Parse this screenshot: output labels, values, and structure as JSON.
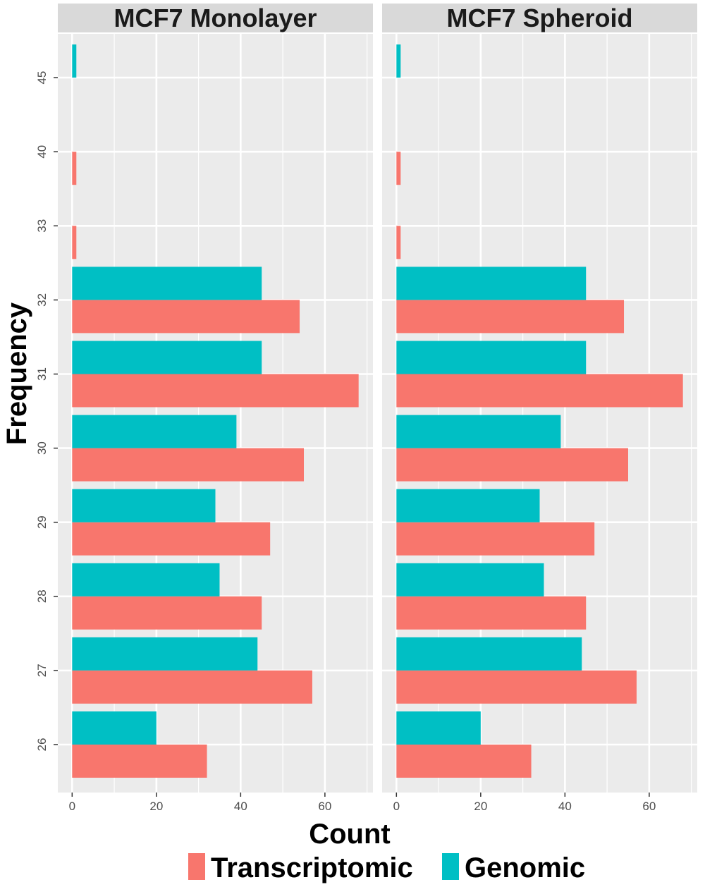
{
  "chart_data": {
    "type": "bar",
    "orientation": "horizontal",
    "facets": [
      "MCF7 Monolayer",
      "MCF7 Spheroid"
    ],
    "categories": [
      "26",
      "27",
      "28",
      "29",
      "30",
      "31",
      "32",
      "33",
      "40",
      "45"
    ],
    "series": [
      {
        "name": "Transcriptomic",
        "color": "#F8766D",
        "values": [
          32,
          57,
          45,
          47,
          55,
          68,
          54,
          1,
          1,
          0
        ]
      },
      {
        "name": "Genomic",
        "color": "#00BFC4",
        "values": [
          20,
          44,
          35,
          34,
          39,
          45,
          45,
          0,
          0,
          1
        ]
      }
    ],
    "xlabel": "Count",
    "ylabel": "Frequency",
    "xticks": [
      0,
      20,
      40,
      60
    ],
    "xlim": [
      -3.4,
      71.4
    ],
    "grid": true,
    "legend_position": "bottom",
    "panel_background": "#EBEBEB",
    "strip_background": "#D9D9D9"
  }
}
